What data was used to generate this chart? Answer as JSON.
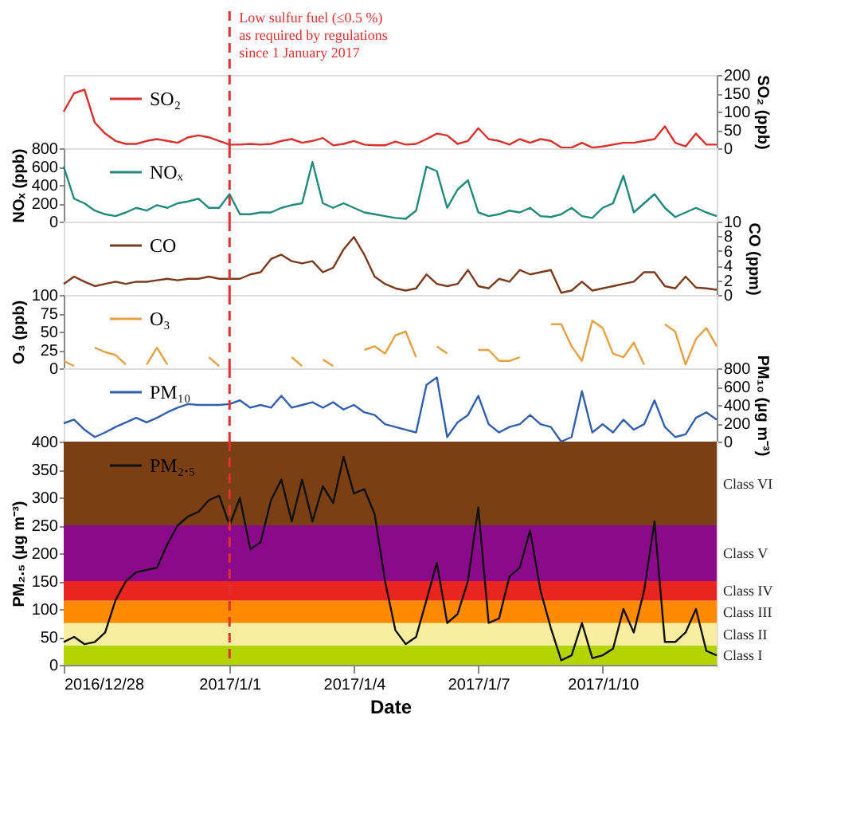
{
  "chart_data": [
    {
      "type": "line",
      "legend": "top left",
      "marker": "none",
      "tick_labels": "y",
      "y2label": "SO₂ (ppb)",
      "y2lim": [
        0,
        200
      ],
      "y2ticks": [
        0,
        50,
        100,
        150,
        200
      ],
      "xlim": [
        "2016-12-28T00:00",
        "2017-01-12T18:00"
      ],
      "ref_lines": [
        {
          "axis": "x",
          "value": "2017-01-01T00:00",
          "label": "Low sulfur fuel (≤0.5 %)\nas required by regulations\nsince 1 January 2017",
          "color": "#e03030",
          "line_style": "dashed"
        }
      ],
      "x": [
        "2016-12-28T00:00",
        "2016-12-28T06:00",
        "2016-12-28T12:00",
        "2016-12-28T18:00",
        "2016-12-29T00:00",
        "2016-12-29T06:00",
        "2016-12-29T12:00",
        "2016-12-29T18:00",
        "2016-12-30T00:00",
        "2016-12-30T06:00",
        "2016-12-30T12:00",
        "2016-12-30T18:00",
        "2016-12-31T00:00",
        "2016-12-31T06:00",
        "2016-12-31T12:00",
        "2016-12-31T18:00",
        "2017-01-01T00:00",
        "2017-01-01T06:00",
        "2017-01-01T12:00",
        "2017-01-01T18:00",
        "2017-01-02T00:00",
        "2017-01-02T06:00",
        "2017-01-02T12:00",
        "2017-01-02T18:00",
        "2017-01-03T00:00",
        "2017-01-03T06:00",
        "2017-01-03T12:00",
        "2017-01-03T18:00",
        "2017-01-04T00:00",
        "2017-01-04T06:00",
        "2017-01-04T12:00",
        "2017-01-04T18:00",
        "2017-01-05T00:00",
        "2017-01-05T06:00",
        "2017-01-05T12:00",
        "2017-01-05T18:00",
        "2017-01-06T00:00",
        "2017-01-06T06:00",
        "2017-01-06T12:00",
        "2017-01-06T18:00",
        "2017-01-07T00:00",
        "2017-01-07T06:00",
        "2017-01-07T12:00",
        "2017-01-07T18:00",
        "2017-01-08T00:00",
        "2017-01-08T06:00",
        "2017-01-08T12:00",
        "2017-01-08T18:00",
        "2017-01-09T00:00",
        "2017-01-09T06:00",
        "2017-01-09T12:00",
        "2017-01-09T18:00",
        "2017-01-10T00:00",
        "2017-01-10T06:00",
        "2017-01-10T12:00",
        "2017-01-10T18:00",
        "2017-01-11T00:00",
        "2017-01-11T06:00",
        "2017-01-11T12:00",
        "2017-01-11T18:00",
        "2017-01-12T00:00",
        "2017-01-12T06:00",
        "2017-01-12T12:00",
        "2017-01-12T18:00"
      ],
      "series": [
        {
          "name": "SO₂",
          "color": "#d9302c",
          "axis": "y2",
          "values": [
            100,
            150,
            160,
            70,
            40,
            20,
            12,
            12,
            20,
            25,
            20,
            15,
            30,
            35,
            30,
            20,
            10,
            10,
            12,
            10,
            12,
            20,
            25,
            15,
            20,
            28,
            8,
            12,
            20,
            10,
            8,
            8,
            18,
            10,
            12,
            25,
            40,
            35,
            12,
            20,
            55,
            25,
            20,
            10,
            25,
            15,
            25,
            20,
            2,
            2,
            15,
            2,
            5,
            10,
            15,
            15,
            20,
            25,
            60,
            15,
            5,
            40,
            10,
            10
          ]
        }
      ]
    },
    {
      "type": "line",
      "legend": "top left",
      "marker": "none",
      "tick_labels": "y",
      "ylabel": "NOₓ (ppb)",
      "ylim": [
        0,
        800
      ],
      "yticks": [
        0,
        200,
        400,
        600,
        800
      ],
      "xlim": [
        "2016-12-28T00:00",
        "2017-01-12T18:00"
      ],
      "ref_lines": [
        {
          "axis": "x",
          "value": "2017-01-01T00:00",
          "color": "#e03030",
          "line_style": "dashed"
        }
      ],
      "x": [
        "2016-12-28T00:00",
        "2016-12-28T06:00",
        "2016-12-28T12:00",
        "2016-12-28T18:00",
        "2016-12-29T00:00",
        "2016-12-29T06:00",
        "2016-12-29T12:00",
        "2016-12-29T18:00",
        "2016-12-30T00:00",
        "2016-12-30T06:00",
        "2016-12-30T12:00",
        "2016-12-30T18:00",
        "2016-12-31T00:00",
        "2016-12-31T06:00",
        "2016-12-31T12:00",
        "2016-12-31T18:00",
        "2017-01-01T00:00",
        "2017-01-01T06:00",
        "2017-01-01T12:00",
        "2017-01-01T18:00",
        "2017-01-02T00:00",
        "2017-01-02T06:00",
        "2017-01-02T12:00",
        "2017-01-02T18:00",
        "2017-01-03T00:00",
        "2017-01-03T06:00",
        "2017-01-03T12:00",
        "2017-01-03T18:00",
        "2017-01-04T00:00",
        "2017-01-04T06:00",
        "2017-01-04T12:00",
        "2017-01-04T18:00",
        "2017-01-05T00:00",
        "2017-01-05T06:00",
        "2017-01-05T12:00",
        "2017-01-05T18:00",
        "2017-01-06T00:00",
        "2017-01-06T06:00",
        "2017-01-06T12:00",
        "2017-01-06T18:00",
        "2017-01-07T00:00",
        "2017-01-07T06:00",
        "2017-01-07T12:00",
        "2017-01-07T18:00",
        "2017-01-08T00:00",
        "2017-01-08T06:00",
        "2017-01-08T12:00",
        "2017-01-08T18:00",
        "2017-01-09T00:00",
        "2017-01-09T06:00",
        "2017-01-09T12:00",
        "2017-01-09T18:00",
        "2017-01-10T00:00",
        "2017-01-10T06:00",
        "2017-01-10T12:00",
        "2017-01-10T18:00",
        "2017-01-11T00:00",
        "2017-01-11T06:00",
        "2017-01-11T12:00",
        "2017-01-11T18:00",
        "2017-01-12T00:00",
        "2017-01-12T06:00",
        "2017-01-12T12:00",
        "2017-01-12T18:00"
      ],
      "series": [
        {
          "name": "NOₓ",
          "color": "#1f8a7c",
          "values": [
            600,
            250,
            200,
            120,
            80,
            60,
            100,
            150,
            120,
            180,
            150,
            200,
            220,
            250,
            150,
            150,
            300,
            80,
            80,
            100,
            100,
            150,
            180,
            200,
            650,
            200,
            150,
            200,
            150,
            100,
            80,
            60,
            40,
            30,
            120,
            600,
            550,
            150,
            350,
            450,
            100,
            60,
            80,
            120,
            100,
            150,
            60,
            50,
            80,
            150,
            60,
            40,
            150,
            200,
            500,
            100,
            200,
            300,
            150,
            50,
            100,
            150,
            100,
            60
          ]
        }
      ]
    },
    {
      "type": "line",
      "legend": "top left",
      "marker": "none",
      "tick_labels": "y",
      "y2label": "CO (ppm)",
      "y2lim": [
        0,
        10
      ],
      "y2ticks": [
        0,
        2,
        4,
        6,
        8,
        10
      ],
      "xlim": [
        "2016-12-28T00:00",
        "2017-01-12T18:00"
      ],
      "ref_lines": [
        {
          "axis": "x",
          "value": "2017-01-01T00:00",
          "color": "#e03030",
          "line_style": "dashed"
        }
      ],
      "x": [
        "2016-12-28T00:00",
        "2016-12-28T06:00",
        "2016-12-28T12:00",
        "2016-12-28T18:00",
        "2016-12-29T00:00",
        "2016-12-29T06:00",
        "2016-12-29T12:00",
        "2016-12-29T18:00",
        "2016-12-30T00:00",
        "2016-12-30T06:00",
        "2016-12-30T12:00",
        "2016-12-30T18:00",
        "2016-12-31T00:00",
        "2016-12-31T06:00",
        "2016-12-31T12:00",
        "2016-12-31T18:00",
        "2017-01-01T00:00",
        "2017-01-01T06:00",
        "2017-01-01T12:00",
        "2017-01-01T18:00",
        "2017-01-02T00:00",
        "2017-01-02T06:00",
        "2017-01-02T12:00",
        "2017-01-02T18:00",
        "2017-01-03T00:00",
        "2017-01-03T06:00",
        "2017-01-03T12:00",
        "2017-01-03T18:00",
        "2017-01-04T00:00",
        "2017-01-04T06:00",
        "2017-01-04T12:00",
        "2017-01-04T18:00",
        "2017-01-05T00:00",
        "2017-01-05T06:00",
        "2017-01-05T12:00",
        "2017-01-05T18:00",
        "2017-01-06T00:00",
        "2017-01-06T06:00",
        "2017-01-06T12:00",
        "2017-01-06T18:00",
        "2017-01-07T00:00",
        "2017-01-07T06:00",
        "2017-01-07T12:00",
        "2017-01-07T18:00",
        "2017-01-08T00:00",
        "2017-01-08T06:00",
        "2017-01-08T12:00",
        "2017-01-08T18:00",
        "2017-01-09T00:00",
        "2017-01-09T06:00",
        "2017-01-09T12:00",
        "2017-01-09T18:00",
        "2017-01-10T00:00",
        "2017-01-10T06:00",
        "2017-01-10T12:00",
        "2017-01-10T18:00",
        "2017-01-11T00:00",
        "2017-01-11T06:00",
        "2017-01-11T12:00",
        "2017-01-11T18:00",
        "2017-01-12T00:00",
        "2017-01-12T06:00",
        "2017-01-12T12:00",
        "2017-01-12T18:00"
      ],
      "series": [
        {
          "name": "CO",
          "color": "#7b3a1c",
          "axis": "y2",
          "values": [
            1.5,
            2.5,
            1.8,
            1.2,
            1.5,
            1.8,
            1.5,
            1.8,
            1.8,
            2,
            2.2,
            2,
            2.2,
            2.2,
            2.5,
            2.2,
            2.2,
            2.2,
            2.8,
            3.1,
            4.9,
            5.5,
            4.6,
            4.3,
            4.6,
            3.1,
            3.7,
            6.2,
            7.9,
            5.5,
            2.5,
            1.5,
            0.9,
            0.6,
            0.9,
            2.8,
            1.5,
            1.2,
            1.5,
            3.4,
            1.2,
            0.9,
            2.2,
            1.8,
            3.4,
            2.8,
            3.1,
            3.4,
            0.3,
            0.6,
            1.8,
            0.6,
            0.9,
            1.2,
            1.5,
            1.8,
            3.1,
            3.1,
            1.2,
            0.9,
            2.5,
            1,
            0.9,
            0.7
          ]
        }
      ]
    },
    {
      "type": "line",
      "legend": "top left",
      "marker": "none",
      "tick_labels": "y",
      "ylabel": "O₃ (ppb)",
      "ylim": [
        0,
        100
      ],
      "yticks": [
        0,
        25,
        50,
        75,
        100
      ],
      "xlim": [
        "2016-12-28T00:00",
        "2017-01-12T18:00"
      ],
      "ref_lines": [
        {
          "axis": "x",
          "value": "2017-01-01T00:00",
          "color": "#e03030",
          "line_style": "dashed"
        }
      ],
      "x": [
        "2016-12-28T00:00",
        "2016-12-28T06:00",
        "2016-12-28T12:00",
        "2016-12-28T18:00",
        "2016-12-29T00:00",
        "2016-12-29T06:00",
        "2016-12-29T12:00",
        "2016-12-29T18:00",
        "2016-12-30T00:00",
        "2016-12-30T06:00",
        "2016-12-30T12:00",
        "2016-12-30T18:00",
        "2016-12-31T00:00",
        "2016-12-31T06:00",
        "2016-12-31T12:00",
        "2016-12-31T18:00",
        "2017-01-01T00:00",
        "2017-01-01T06:00",
        "2017-01-01T12:00",
        "2017-01-01T18:00",
        "2017-01-02T00:00",
        "2017-01-02T06:00",
        "2017-01-02T12:00",
        "2017-01-02T18:00",
        "2017-01-03T00:00",
        "2017-01-03T06:00",
        "2017-01-03T12:00",
        "2017-01-03T18:00",
        "2017-01-04T00:00",
        "2017-01-04T06:00",
        "2017-01-04T12:00",
        "2017-01-04T18:00",
        "2017-01-05T00:00",
        "2017-01-05T06:00",
        "2017-01-05T12:00",
        "2017-01-05T18:00",
        "2017-01-06T00:00",
        "2017-01-06T06:00",
        "2017-01-06T12:00",
        "2017-01-06T18:00",
        "2017-01-07T00:00",
        "2017-01-07T06:00",
        "2017-01-07T12:00",
        "2017-01-07T18:00",
        "2017-01-08T00:00",
        "2017-01-08T06:00",
        "2017-01-08T12:00",
        "2017-01-08T18:00",
        "2017-01-09T00:00",
        "2017-01-09T06:00",
        "2017-01-09T12:00",
        "2017-01-09T18:00",
        "2017-01-10T00:00",
        "2017-01-10T06:00",
        "2017-01-10T12:00",
        "2017-01-10T18:00",
        "2017-01-11T00:00",
        "2017-01-11T06:00",
        "2017-01-11T12:00",
        "2017-01-11T18:00",
        "2017-01-12T00:00",
        "2017-01-12T06:00",
        "2017-01-12T12:00",
        "2017-01-12T18:00"
      ],
      "series": [
        {
          "name": "O₃",
          "color": "#e5a042",
          "values": [
            10,
            3,
            null,
            28,
            22,
            18,
            5,
            null,
            5,
            28,
            5,
            null,
            null,
            null,
            15,
            3,
            null,
            null,
            null,
            null,
            null,
            null,
            15,
            3,
            null,
            12,
            3,
            null,
            null,
            25,
            30,
            20,
            45,
            50,
            15,
            null,
            30,
            20,
            null,
            null,
            25,
            25,
            10,
            10,
            15,
            null,
            null,
            60,
            60,
            30,
            10,
            65,
            55,
            20,
            15,
            35,
            5,
            null,
            60,
            50,
            5,
            40,
            55,
            30
          ]
        }
      ]
    },
    {
      "type": "line",
      "legend": "top left",
      "marker": "none",
      "tick_labels": "y",
      "y2label": "PM₁₀ (μg m⁻³)",
      "y2lim": [
        0,
        800
      ],
      "y2ticks": [
        0,
        200,
        400,
        600,
        800
      ],
      "xlim": [
        "2016-12-28T00:00",
        "2017-01-12T18:00"
      ],
      "ref_lines": [
        {
          "axis": "x",
          "value": "2017-01-01T00:00",
          "color": "#e03030",
          "line_style": "dashed"
        }
      ],
      "x": [
        "2016-12-28T00:00",
        "2016-12-28T06:00",
        "2016-12-28T12:00",
        "2016-12-28T18:00",
        "2016-12-29T00:00",
        "2016-12-29T06:00",
        "2016-12-29T12:00",
        "2016-12-29T18:00",
        "2016-12-30T00:00",
        "2016-12-30T06:00",
        "2016-12-30T12:00",
        "2016-12-30T18:00",
        "2016-12-31T00:00",
        "2016-12-31T06:00",
        "2016-12-31T12:00",
        "2016-12-31T18:00",
        "2017-01-01T00:00",
        "2017-01-01T06:00",
        "2017-01-01T12:00",
        "2017-01-01T18:00",
        "2017-01-02T00:00",
        "2017-01-02T06:00",
        "2017-01-02T12:00",
        "2017-01-02T18:00",
        "2017-01-03T00:00",
        "2017-01-03T06:00",
        "2017-01-03T12:00",
        "2017-01-03T18:00",
        "2017-01-04T00:00",
        "2017-01-04T06:00",
        "2017-01-04T12:00",
        "2017-01-04T18:00",
        "2017-01-05T00:00",
        "2017-01-05T06:00",
        "2017-01-05T12:00",
        "2017-01-05T18:00",
        "2017-01-06T00:00",
        "2017-01-06T06:00",
        "2017-01-06T12:00",
        "2017-01-06T18:00",
        "2017-01-07T00:00",
        "2017-01-07T06:00",
        "2017-01-07T12:00",
        "2017-01-07T18:00",
        "2017-01-08T00:00",
        "2017-01-08T06:00",
        "2017-01-08T12:00",
        "2017-01-08T18:00",
        "2017-01-09T00:00",
        "2017-01-09T06:00",
        "2017-01-09T12:00",
        "2017-01-09T18:00",
        "2017-01-10T00:00",
        "2017-01-10T06:00",
        "2017-01-10T12:00",
        "2017-01-10T18:00",
        "2017-01-11T00:00",
        "2017-01-11T06:00",
        "2017-01-11T12:00",
        "2017-01-11T18:00",
        "2017-01-12T00:00",
        "2017-01-12T06:00",
        "2017-01-12T12:00",
        "2017-01-12T18:00"
      ],
      "series": [
        {
          "name": "PM₁₀",
          "color": "#2f5fae",
          "axis": "y2",
          "values": [
            200,
            240,
            130,
            50,
            100,
            160,
            210,
            260,
            210,
            260,
            320,
            370,
            410,
            400,
            400,
            400,
            410,
            450,
            370,
            400,
            370,
            500,
            370,
            400,
            430,
            370,
            430,
            350,
            400,
            320,
            290,
            190,
            160,
            130,
            100,
            620,
            700,
            50,
            210,
            290,
            500,
            190,
            100,
            160,
            190,
            290,
            190,
            160,
            0,
            50,
            550,
            100,
            190,
            100,
            240,
            130,
            190,
            450,
            160,
            50,
            80,
            260,
            320,
            240
          ]
        }
      ]
    },
    {
      "type": "line",
      "legend": "top left",
      "marker": "none",
      "ylabel": "PM₂.₅ (μg m⁻³)",
      "xlabel": "Date",
      "ylim": [
        0,
        400
      ],
      "yticks": [
        0,
        50,
        100,
        150,
        200,
        250,
        300,
        350,
        400
      ],
      "xlim": [
        "2016-12-28T00:00",
        "2017-01-12T18:00"
      ],
      "xticks": [
        {
          "value": "2016-12-28T00:00",
          "label": "2016/12/28"
        },
        {
          "value": "2017-01-01T00:00",
          "label": "2017/1/1"
        },
        {
          "value": "2017-01-04T00:00",
          "label": "2017/1/4"
        },
        {
          "value": "2017-01-07T00:00",
          "label": "2017/1/7"
        },
        {
          "value": "2017-01-10T00:00",
          "label": "2017/1/10"
        }
      ],
      "ref_lines": [
        {
          "axis": "x",
          "value": "2017-01-01T00:00",
          "color": "#e03030",
          "line_style": "dashed"
        }
      ],
      "bands": [
        {
          "axis": "y",
          "from": 0,
          "to": 35,
          "label": "Class I",
          "color": "#b4d400"
        },
        {
          "axis": "y",
          "from": 35,
          "to": 75,
          "label": "Class II",
          "color": "#f9eea0"
        },
        {
          "axis": "y",
          "from": 75,
          "to": 115,
          "label": "Class III",
          "color": "#ff8a00"
        },
        {
          "axis": "y",
          "from": 115,
          "to": 150,
          "label": "Class IV",
          "color": "#e8251f"
        },
        {
          "axis": "y",
          "from": 150,
          "to": 250,
          "label": "Class V",
          "color": "#8b0a8b"
        },
        {
          "axis": "y",
          "from": 250,
          "to": 400,
          "label": "Class VI",
          "color": "#7a3f12"
        }
      ],
      "x": [
        "2016-12-28T00:00",
        "2016-12-28T06:00",
        "2016-12-28T12:00",
        "2016-12-28T18:00",
        "2016-12-29T00:00",
        "2016-12-29T06:00",
        "2016-12-29T12:00",
        "2016-12-29T18:00",
        "2016-12-30T00:00",
        "2016-12-30T06:00",
        "2016-12-30T12:00",
        "2016-12-30T18:00",
        "2016-12-31T00:00",
        "2016-12-31T06:00",
        "2016-12-31T12:00",
        "2016-12-31T18:00",
        "2017-01-01T00:00",
        "2017-01-01T06:00",
        "2017-01-01T12:00",
        "2017-01-01T18:00",
        "2017-01-02T00:00",
        "2017-01-02T06:00",
        "2017-01-02T12:00",
        "2017-01-02T18:00",
        "2017-01-03T00:00",
        "2017-01-03T06:00",
        "2017-01-03T12:00",
        "2017-01-03T18:00",
        "2017-01-04T00:00",
        "2017-01-04T06:00",
        "2017-01-04T12:00",
        "2017-01-04T18:00",
        "2017-01-05T00:00",
        "2017-01-05T06:00",
        "2017-01-05T12:00",
        "2017-01-05T18:00",
        "2017-01-06T00:00",
        "2017-01-06T06:00",
        "2017-01-06T12:00",
        "2017-01-06T18:00",
        "2017-01-07T00:00",
        "2017-01-07T06:00",
        "2017-01-07T12:00",
        "2017-01-07T18:00",
        "2017-01-08T00:00",
        "2017-01-08T06:00",
        "2017-01-08T12:00",
        "2017-01-08T18:00",
        "2017-01-09T00:00",
        "2017-01-09T06:00",
        "2017-01-09T12:00",
        "2017-01-09T18:00",
        "2017-01-10T00:00",
        "2017-01-10T06:00",
        "2017-01-10T12:00",
        "2017-01-10T18:00",
        "2017-01-11T00:00",
        "2017-01-11T06:00",
        "2017-01-11T12:00",
        "2017-01-11T18:00",
        "2017-01-12T00:00",
        "2017-01-12T06:00",
        "2017-01-12T12:00",
        "2017-01-12T18:00"
      ],
      "series": [
        {
          "name": "PM₂.₅",
          "color": "#111111",
          "values": [
            41,
            50,
            37,
            41,
            58,
            116,
            150,
            166,
            170,
            174,
            216,
            250,
            266,
            274,
            295,
            303,
            250,
            299,
            207,
            220,
            295,
            332,
            257,
            332,
            257,
            320,
            290,
            373,
            307,
            315,
            270,
            150,
            62,
            37,
            50,
            116,
            183,
            75,
            91,
            150,
            282,
            75,
            83,
            158,
            174,
            241,
            133,
            66,
            8,
            17,
            75,
            12,
            17,
            29,
            100,
            58,
            133,
            257,
            41,
            41,
            58,
            100,
            25,
            17
          ]
        }
      ]
    }
  ]
}
